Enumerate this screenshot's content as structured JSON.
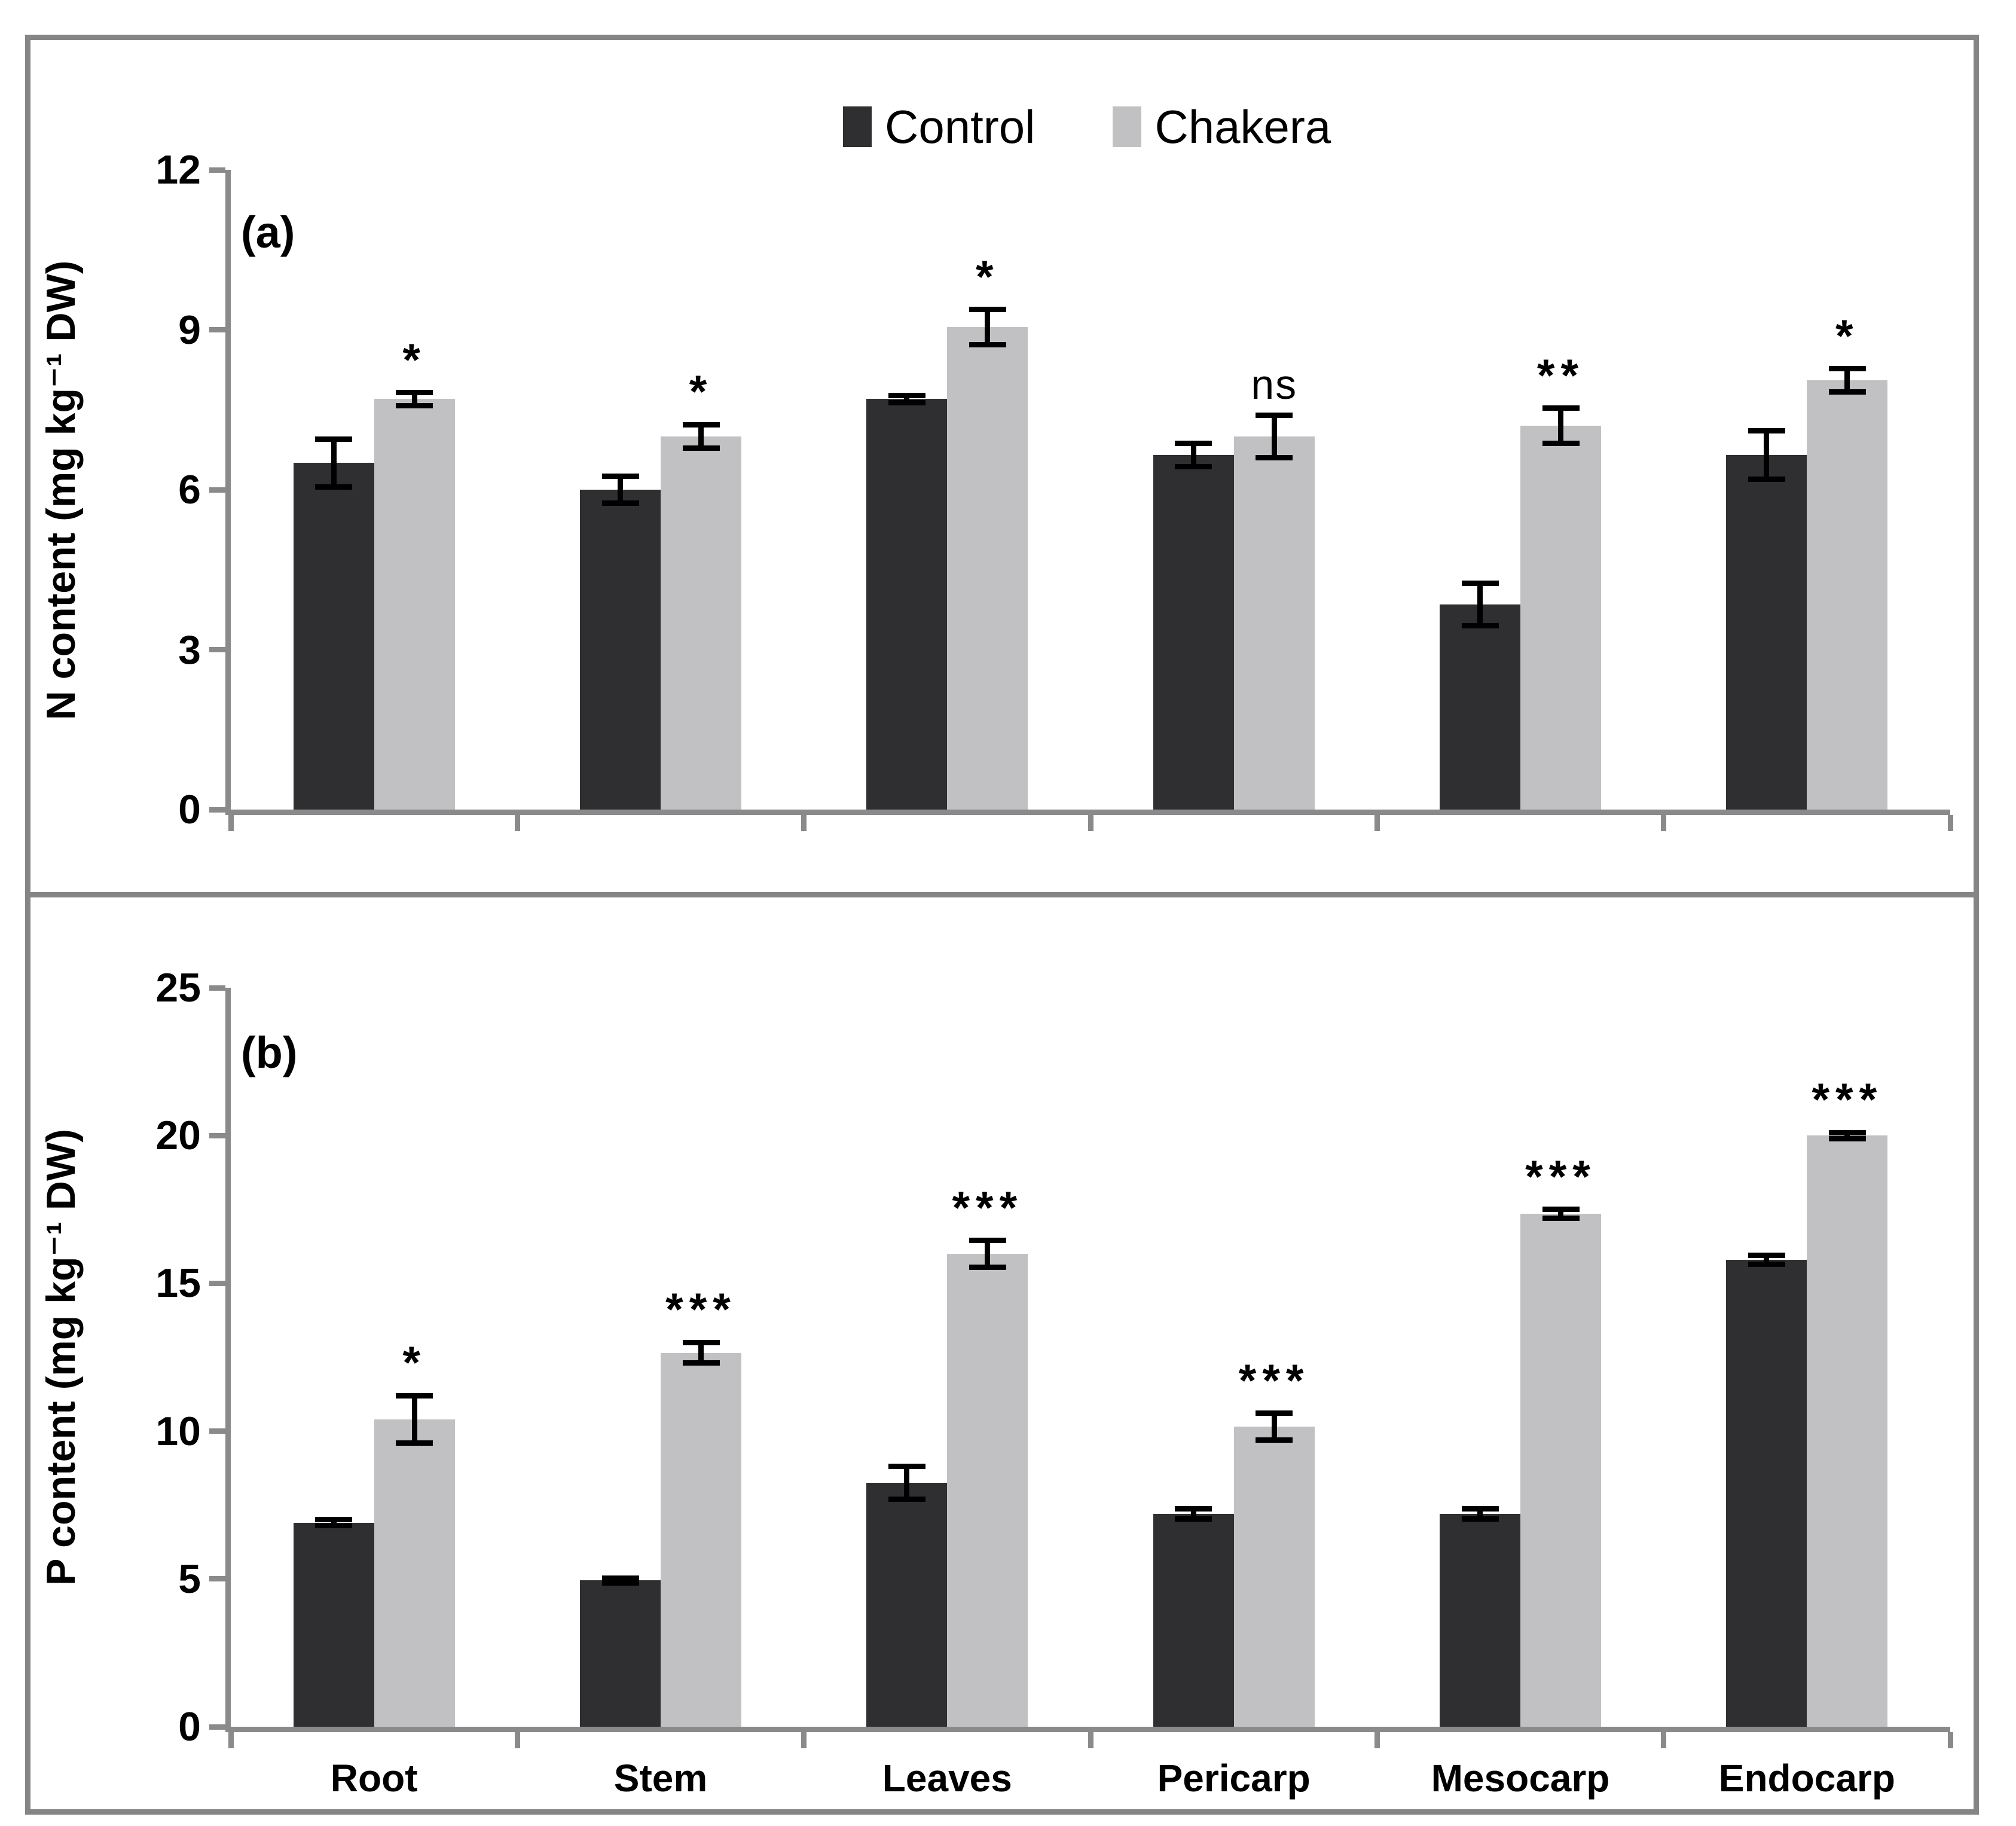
{
  "legend": {
    "items": [
      {
        "label": "Control",
        "color": "#2f2f31"
      },
      {
        "label": "Chakera",
        "color": "#c1c1c3"
      }
    ]
  },
  "axis_color": "#8a8a8a",
  "frame_color": "#858585",
  "error_bar_color": "#000000",
  "chart_data": [
    {
      "type": "bar",
      "panel_label": "(a)",
      "ylabel": "N content (mg kg⁻¹ DW)",
      "xlabel": "",
      "ylim": [
        0,
        12
      ],
      "ytick_step": 3,
      "ytick_labels": [
        "0",
        "3",
        "6",
        "9",
        "12"
      ],
      "grid": false,
      "legend_position": "top-center",
      "categories": [
        "Root",
        "Stem",
        "Leaves",
        "Pericarp",
        "Mesocarp",
        "Endocarp"
      ],
      "series": [
        {
          "name": "Control",
          "color": "#2f2f31",
          "values": [
            6.5,
            6.0,
            7.7,
            6.65,
            3.85,
            6.65
          ],
          "errors": [
            0.45,
            0.25,
            0.07,
            0.22,
            0.4,
            0.45
          ]
        },
        {
          "name": "Chakera",
          "color": "#c1c1c3",
          "values": [
            7.7,
            7.0,
            9.05,
            7.0,
            7.2,
            8.05
          ],
          "errors": [
            0.12,
            0.22,
            0.33,
            0.4,
            0.33,
            0.22
          ]
        }
      ],
      "significance": [
        "*",
        "*",
        "*",
        "ns",
        "**",
        "*"
      ]
    },
    {
      "type": "bar",
      "panel_label": "(b)",
      "ylabel": "P content (mg kg⁻¹ DW)",
      "xlabel": "",
      "ylim": [
        0,
        25
      ],
      "ytick_step": 5,
      "ytick_labels": [
        "0",
        "5",
        "10",
        "15",
        "20",
        "25"
      ],
      "grid": false,
      "legend_position": "none",
      "categories": [
        "Root",
        "Stem",
        "Leaves",
        "Pericarp",
        "Mesocarp",
        "Endocarp"
      ],
      "series": [
        {
          "name": "Control",
          "color": "#2f2f31",
          "values": [
            6.9,
            4.95,
            8.25,
            7.2,
            7.2,
            15.8
          ],
          "errors": [
            0.1,
            0.08,
            0.55,
            0.18,
            0.18,
            0.15
          ]
        },
        {
          "name": "Chakera",
          "color": "#c1c1c3",
          "values": [
            10.4,
            12.65,
            16.0,
            10.15,
            17.35,
            20.0
          ],
          "errors": [
            0.8,
            0.35,
            0.45,
            0.45,
            0.15,
            0.1
          ]
        }
      ],
      "significance": [
        "*",
        "***",
        "***",
        "***",
        "***",
        "***"
      ]
    }
  ]
}
